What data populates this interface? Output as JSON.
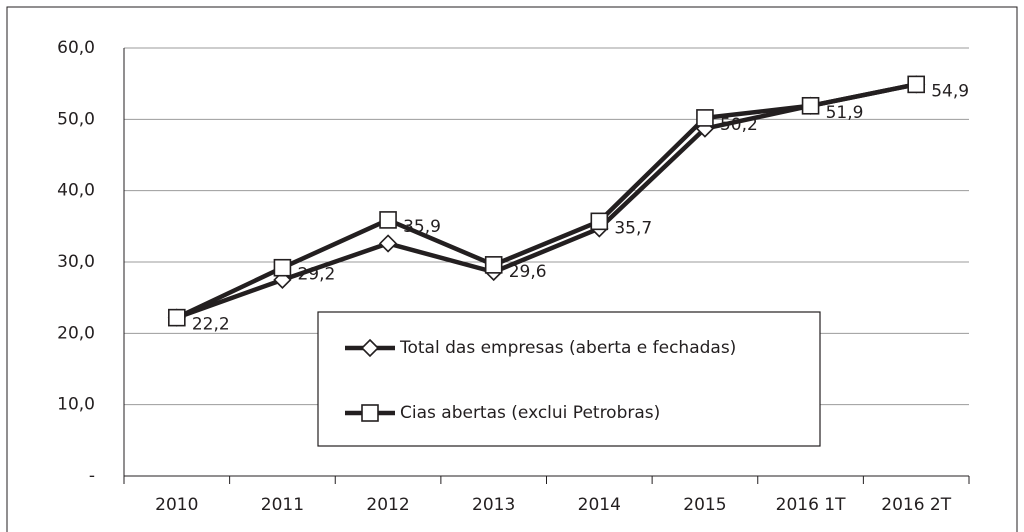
{
  "chart_data": {
    "type": "line",
    "categories": [
      "2010",
      "2011",
      "2012",
      "2013",
      "2014",
      "2015",
      "2016 1T",
      "2016 2T"
    ],
    "series": [
      {
        "name": "Total das empresas (aberta e fechadas)",
        "color": "#231f20",
        "marker": "diamond",
        "values": [
          22.2,
          27.5,
          32.6,
          28.6,
          34.7,
          48.7,
          51.9,
          54.9
        ]
      },
      {
        "name": "Cias abertas (exclui Petrobras)",
        "color": "#231f20",
        "marker": "square",
        "values": [
          22.2,
          29.2,
          35.9,
          29.6,
          35.7,
          50.2,
          51.9,
          54.9
        ],
        "value_labels": [
          "22,2",
          "29,2",
          "35,9",
          "29,6",
          "35,7",
          "50,2",
          "51,9",
          "54,9"
        ]
      }
    ],
    "ylim": [
      0,
      60
    ],
    "yticks": [
      {
        "value": 0,
        "label": "-"
      },
      {
        "value": 10,
        "label": "10,0"
      },
      {
        "value": 20,
        "label": "20,0"
      },
      {
        "value": 30,
        "label": "30,0"
      },
      {
        "value": 40,
        "label": "40,0"
      },
      {
        "value": 50,
        "label": "50,0"
      },
      {
        "value": 60,
        "label": "60,0"
      }
    ],
    "grid": true
  }
}
